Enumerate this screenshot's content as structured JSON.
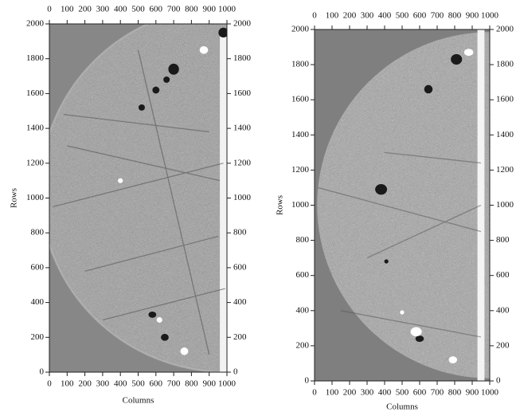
{
  "chart_data": [
    {
      "type": "image",
      "xlabel": "Columns",
      "ylabel": "Rows",
      "xlim": [
        0,
        1000
      ],
      "ylim": [
        0,
        2000
      ],
      "xticks": [
        0,
        100,
        200,
        300,
        400,
        500,
        600,
        700,
        800,
        900,
        1000
      ],
      "yticks": [
        0,
        200,
        400,
        600,
        800,
        1000,
        1200,
        1400,
        1600,
        1800,
        2000
      ]
    },
    {
      "type": "image",
      "xlabel": "Columns",
      "ylabel": "Rows",
      "xlim": [
        0,
        1000
      ],
      "ylim": [
        0,
        2000
      ],
      "xticks": [
        0,
        100,
        200,
        300,
        400,
        500,
        600,
        700,
        800,
        900,
        1000
      ],
      "yticks": [
        0,
        200,
        400,
        600,
        800,
        1000,
        1200,
        1400,
        1600,
        1800,
        2000
      ]
    }
  ]
}
